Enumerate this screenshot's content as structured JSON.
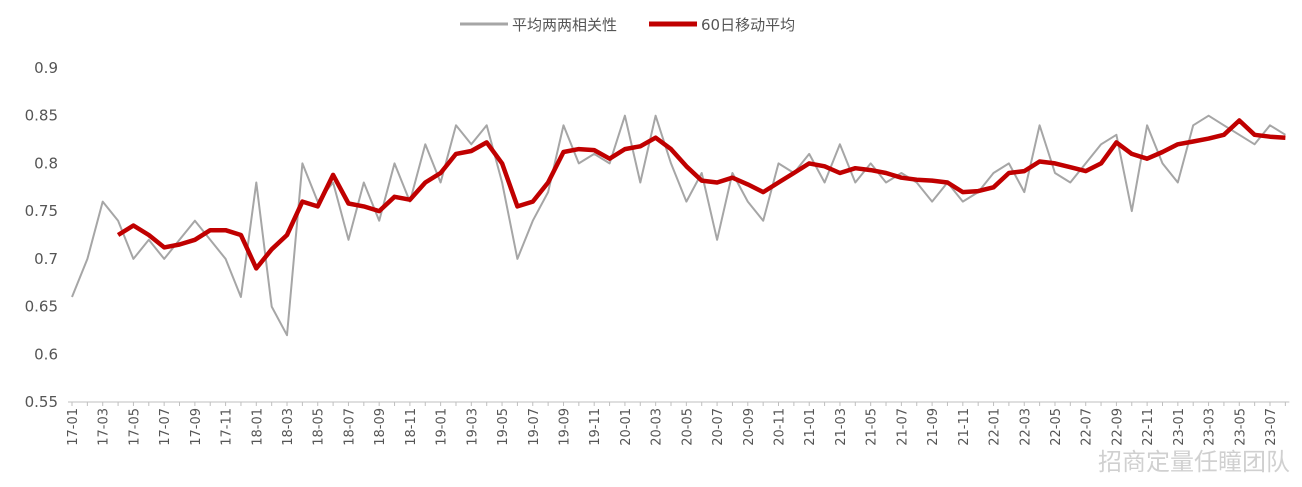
{
  "chart_data": {
    "type": "line",
    "categories": [
      "17-01",
      null,
      "17-03",
      null,
      "17-05",
      null,
      "17-07",
      null,
      "17-09",
      null,
      "17-11",
      null,
      "18-01",
      null,
      "18-03",
      null,
      "18-05",
      null,
      "18-07",
      null,
      "18-09",
      null,
      "18-11",
      null,
      "19-01",
      null,
      "19-03",
      null,
      "19-05",
      null,
      "19-07",
      null,
      "19-09",
      null,
      "19-11",
      null,
      "20-01",
      null,
      "20-03",
      null,
      "20-05",
      null,
      "20-07",
      null,
      "20-09",
      null,
      "20-11",
      null,
      "21-01",
      null,
      "21-03",
      null,
      "21-05",
      null,
      "21-07",
      null,
      "21-09",
      null,
      "21-11",
      null,
      "22-01",
      null,
      "22-03",
      null,
      "22-05",
      null,
      "22-07",
      null,
      "22-09",
      null,
      "22-11",
      null,
      "23-01",
      null,
      "23-03",
      null,
      "23-05",
      null,
      "23-07",
      null
    ],
    "series": [
      {
        "name": "平均两两相关性",
        "color": "#a6a6a6",
        "values": [
          0.66,
          0.7,
          0.76,
          0.74,
          0.7,
          0.72,
          0.7,
          0.72,
          0.74,
          0.72,
          0.7,
          0.66,
          0.78,
          0.65,
          0.62,
          0.8,
          0.76,
          0.78,
          0.72,
          0.78,
          0.74,
          0.8,
          0.76,
          0.82,
          0.78,
          0.84,
          0.82,
          0.84,
          0.78,
          0.7,
          0.74,
          0.77,
          0.84,
          0.8,
          0.81,
          0.8,
          0.85,
          0.78,
          0.85,
          0.8,
          0.76,
          0.79,
          0.72,
          0.79,
          0.76,
          0.74,
          0.8,
          0.79,
          0.81,
          0.78,
          0.82,
          0.78,
          0.8,
          0.78,
          0.79,
          0.78,
          0.76,
          0.78,
          0.76,
          0.77,
          0.79,
          0.8,
          0.77,
          0.84,
          0.79,
          0.78,
          0.8,
          0.82,
          0.83,
          0.75,
          0.84,
          0.8,
          0.78,
          0.84,
          0.85,
          0.84,
          0.83,
          0.82,
          0.84,
          0.83
        ]
      },
      {
        "name": "60日移动平均",
        "color": "#c00000",
        "values": [
          null,
          null,
          null,
          0.725,
          0.735,
          0.725,
          0.712,
          0.715,
          0.72,
          0.73,
          0.73,
          0.725,
          0.69,
          0.71,
          0.725,
          0.76,
          0.755,
          0.788,
          0.758,
          0.755,
          0.75,
          0.765,
          0.762,
          0.78,
          0.79,
          0.81,
          0.813,
          0.822,
          0.8,
          0.755,
          0.76,
          0.78,
          0.812,
          0.815,
          0.814,
          0.805,
          0.815,
          0.818,
          0.827,
          0.815,
          0.797,
          0.782,
          0.78,
          0.785,
          0.778,
          0.77,
          0.78,
          0.79,
          0.8,
          0.797,
          0.79,
          0.795,
          0.793,
          0.79,
          0.785,
          0.783,
          0.782,
          0.78,
          0.77,
          0.771,
          0.775,
          0.79,
          0.792,
          0.802,
          0.8,
          0.796,
          0.792,
          0.8,
          0.822,
          0.81,
          0.805,
          0.812,
          0.82,
          0.823,
          0.826,
          0.83,
          0.845,
          0.83,
          0.828,
          0.827
        ]
      }
    ],
    "ylim": [
      0.55,
      0.9
    ],
    "yticks": [
      0.55,
      0.6,
      0.65,
      0.7,
      0.75,
      0.8,
      0.85,
      0.9
    ],
    "legend": "top",
    "watermark": "招商定量任瞳团队"
  }
}
